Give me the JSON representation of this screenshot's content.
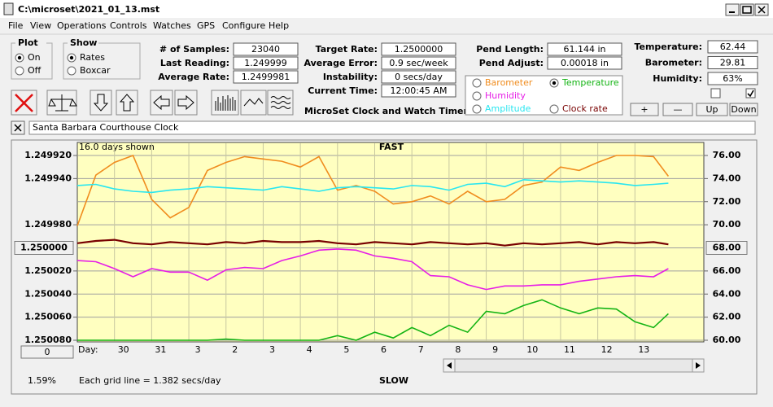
{
  "window": {
    "title": "C:\\microset\\2021_01_13.mst"
  },
  "menu": [
    "File",
    "View",
    "Operations",
    "Controls",
    "Watches",
    "GPS",
    "Configure",
    "Help"
  ],
  "plot_group": {
    "label": "Plot",
    "options": [
      "On",
      "Off"
    ],
    "selected": 0
  },
  "show_group": {
    "label": "Show",
    "options": [
      "Rates",
      "Boxcar"
    ],
    "selected": 0
  },
  "fields": [
    [
      {
        "label": "# of Samples:",
        "value": "23040"
      },
      {
        "label": "Last Reading:",
        "value": "1.249999"
      },
      {
        "label": "Average Rate:",
        "value": "1.2499981"
      }
    ],
    [
      {
        "label": "Target Rate:",
        "value": "1.2500000"
      },
      {
        "label": "Average Error:",
        "value": "0.9 sec/week"
      },
      {
        "label": "Instability:",
        "value": "0 secs/day"
      },
      {
        "label": "Current Time:",
        "value": "12:00:45 AM"
      }
    ],
    [
      {
        "label": "Pend Length:",
        "value": "61.144 in"
      },
      {
        "label": "Pend Adjust:",
        "value": "0.00018 in"
      }
    ],
    [
      {
        "label": "Temperature:",
        "value": "62.44"
      },
      {
        "label": "Barometer:",
        "value": "29.81"
      },
      {
        "label": "Humidity:",
        "value": "63%"
      }
    ]
  ],
  "checkboxes": [
    false,
    true
  ],
  "buttons": [
    "+",
    "—",
    "Up",
    "Down"
  ],
  "app_name": "MicroSet Clock and Watch Timer",
  "clock_name": "Santa Barbara Courthouse Clock",
  "chart_data": {
    "type": "line",
    "top_label": "FAST",
    "bottom_label": "SLOW",
    "annotation": "16.0 days shown",
    "x_label": "Day:",
    "footer": "Each grid line = 1.382 secs/day",
    "status": "1.59%",
    "offset_button": "0",
    "selected_series": 1,
    "xlim": [
      0,
      16
    ],
    "xticks": [
      {
        "value": 1,
        "label": "30"
      },
      {
        "value": 2,
        "label": "31"
      },
      3,
      {
        "value": 4,
        "label": "2"
      },
      {
        "value": 5,
        "label": "3"
      },
      {
        "value": 6,
        "label": "4"
      },
      {
        "value": 7,
        "label": "5"
      },
      {
        "value": 8,
        "label": "6"
      },
      {
        "value": 9,
        "label": "7"
      },
      {
        "value": 10,
        "label": "8"
      },
      {
        "value": 11,
        "label": "9"
      },
      {
        "value": 12,
        "label": "10"
      },
      {
        "value": 13,
        "label": "11"
      },
      {
        "value": 14,
        "label": "12"
      },
      {
        "value": 15,
        "label": "13"
      }
    ],
    "ylim": [
      1.24992,
      1.25008
    ],
    "y_inverted": true,
    "yticks": [
      {
        "value": 1.24992,
        "label": "1.249920"
      },
      {
        "value": 1.24994,
        "label": "1.249940"
      },
      {
        "value": 1.24998,
        "label": "1.249980"
      },
      {
        "value": 1.25,
        "label": "1.250000"
      },
      {
        "value": 1.25002,
        "label": "1.250020"
      },
      {
        "value": 1.25004,
        "label": "1.250040"
      },
      {
        "value": 1.25006,
        "label": "1.250060"
      },
      {
        "value": 1.25008,
        "label": "1.250080"
      }
    ],
    "y2lim": [
      60,
      76
    ],
    "y2ticks": [
      {
        "value": 76,
        "label": "76.00"
      },
      {
        "value": 74,
        "label": "74.00"
      },
      {
        "value": 72,
        "label": "72.00"
      },
      {
        "value": 70,
        "label": "70.00"
      },
      {
        "value": 68,
        "label": "68.00"
      },
      {
        "value": 66,
        "label": "66.00"
      },
      {
        "value": 64,
        "label": "64.00"
      },
      {
        "value": 62,
        "label": "62.00"
      },
      {
        "value": 60,
        "label": "60.00"
      }
    ],
    "grid": true,
    "x": [
      0,
      0.5,
      1,
      1.5,
      2,
      2.5,
      3,
      3.5,
      4,
      4.5,
      5,
      5.5,
      6,
      6.5,
      7,
      7.5,
      8,
      8.5,
      9,
      9.5,
      10,
      10.5,
      11,
      11.5,
      12,
      12.5,
      13,
      13.5,
      14,
      14.5,
      15,
      15.5,
      15.9
    ],
    "series": [
      {
        "name": "Barometer",
        "color": "#f08c1e",
        "axis": "y2",
        "values": [
          69.9,
          74.3,
          75.4,
          76,
          72.2,
          70.6,
          71.5,
          74.7,
          75.4,
          75.9,
          75.7,
          75.5,
          75.0,
          75.9,
          73.0,
          73.4,
          72.9,
          71.8,
          72.0,
          72.5,
          71.8,
          72.9,
          72.0,
          72.2,
          73.4,
          73.7,
          75.0,
          74.7,
          75.4,
          76,
          76,
          75.9,
          74.2
        ]
      },
      {
        "name": "Temperature",
        "color": "#14b414",
        "axis": "y2",
        "values": [
          60,
          60,
          60,
          60,
          60,
          60,
          60,
          60,
          60.1,
          60,
          60,
          60,
          60,
          60,
          60.4,
          60,
          60.7,
          60.2,
          61.1,
          60.4,
          61.3,
          60.7,
          62.5,
          62.3,
          63,
          63.5,
          62.8,
          62.3,
          62.8,
          62.7,
          61.6,
          61.1,
          62.3
        ]
      },
      {
        "name": "Humidity",
        "color": "#e61ee6",
        "axis": "y2",
        "values": [
          66.9,
          66.8,
          66.2,
          65.5,
          66.2,
          65.9,
          65.9,
          65.2,
          66.1,
          66.3,
          66.2,
          66.9,
          67.3,
          67.8,
          67.9,
          67.8,
          67.3,
          67.1,
          66.8,
          65.6,
          65.5,
          64.8,
          64.4,
          64.7,
          64.7,
          64.8,
          64.8,
          65.1,
          65.3,
          65.5,
          65.6,
          65.5,
          66.2
        ]
      },
      {
        "name": "Amplitude",
        "color": "#28e6f0",
        "axis": "y2",
        "values": [
          73.4,
          73.5,
          73.1,
          72.9,
          72.8,
          73.0,
          73.1,
          73.3,
          73.2,
          73.1,
          73.0,
          73.3,
          73.1,
          72.9,
          73.2,
          73.3,
          73.2,
          73.1,
          73.4,
          73.3,
          73.0,
          73.5,
          73.6,
          73.3,
          73.9,
          73.8,
          73.7,
          73.8,
          73.7,
          73.6,
          73.4,
          73.5,
          73.6
        ]
      },
      {
        "name": "Clock rate",
        "color": "#780000",
        "values": [
          1.249996,
          1.249994,
          1.249993,
          1.249996,
          1.249997,
          1.249995,
          1.249996,
          1.249997,
          1.249995,
          1.249996,
          1.249994,
          1.249995,
          1.249995,
          1.249994,
          1.249996,
          1.249997,
          1.249995,
          1.249996,
          1.249997,
          1.249995,
          1.249996,
          1.249997,
          1.249996,
          1.249998,
          1.249996,
          1.249997,
          1.249996,
          1.249995,
          1.249997,
          1.249995,
          1.249996,
          1.249995,
          1.249997
        ]
      }
    ]
  }
}
